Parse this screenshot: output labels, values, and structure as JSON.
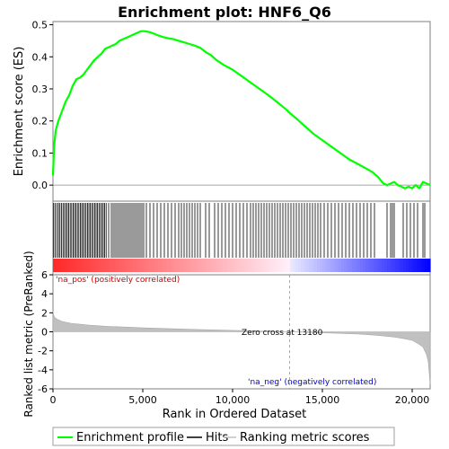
{
  "chart_data": {
    "type": "line",
    "title": "Enrichment plot: HNF6_Q6",
    "es_panel": {
      "ylabel": "Enrichment score (ES)",
      "ylim": [
        -0.05,
        0.51
      ],
      "yticks": [
        0.0,
        0.1,
        0.2,
        0.3,
        0.4,
        0.5
      ],
      "ytick_labels": [
        "0.0",
        "0.1",
        "0.2",
        "0.3",
        "0.4",
        "0.5"
      ],
      "series": [
        {
          "name": "Enrichment profile",
          "color": "#00ff00",
          "x": [
            0,
            60,
            150,
            300,
            500,
            700,
            900,
            1100,
            1300,
            1500,
            1700,
            1900,
            2100,
            2300,
            2500,
            2700,
            2900,
            3100,
            3300,
            3500,
            3700,
            3900,
            4100,
            4300,
            4500,
            4700,
            4900,
            5100,
            5300,
            5500,
            5800,
            6100,
            6400,
            6700,
            7000,
            7300,
            7600,
            7900,
            8200,
            8500,
            8800,
            9100,
            9500,
            10000,
            10500,
            11000,
            11500,
            12000,
            12500,
            13000,
            13180,
            13500,
            14000,
            14500,
            15000,
            15500,
            16000,
            16500,
            17000,
            17500,
            17800,
            18100,
            18400,
            18600,
            18800,
            19000,
            19200,
            19400,
            19600,
            19800,
            20000,
            20200,
            20400,
            20600,
            20800,
            21000
          ],
          "values": [
            0.03,
            0.12,
            0.17,
            0.2,
            0.23,
            0.26,
            0.28,
            0.31,
            0.33,
            0.335,
            0.345,
            0.36,
            0.375,
            0.39,
            0.4,
            0.41,
            0.425,
            0.43,
            0.435,
            0.44,
            0.45,
            0.455,
            0.46,
            0.465,
            0.47,
            0.475,
            0.48,
            0.48,
            0.478,
            0.475,
            0.468,
            0.462,
            0.458,
            0.455,
            0.45,
            0.445,
            0.44,
            0.435,
            0.428,
            0.415,
            0.405,
            0.39,
            0.375,
            0.36,
            0.34,
            0.32,
            0.3,
            0.28,
            0.258,
            0.235,
            0.225,
            0.21,
            0.185,
            0.16,
            0.14,
            0.12,
            0.1,
            0.08,
            0.065,
            0.05,
            0.04,
            0.025,
            0.005,
            0.0,
            0.005,
            0.01,
            0.0,
            -0.005,
            -0.01,
            -0.005,
            -0.01,
            0.0,
            -0.01,
            0.01,
            0.005,
            0.0
          ]
        }
      ]
    },
    "hits_panel": {
      "name": "Hits",
      "hit_positions": [
        40,
        130,
        220,
        310,
        390,
        470,
        560,
        640,
        720,
        800,
        880,
        960,
        1040,
        1120,
        1200,
        1280,
        1360,
        1440,
        1520,
        1600,
        1680,
        1760,
        1840,
        1920,
        2000,
        2080,
        2160,
        2240,
        2320,
        2400,
        2480,
        2560,
        2640,
        2720,
        2800,
        2880,
        2960,
        3100,
        3250,
        3350,
        3450,
        3550,
        3650,
        3750,
        3850,
        3950,
        4050,
        4150,
        4250,
        4350,
        4450,
        4550,
        4650,
        4750,
        4850,
        4950,
        5050,
        5200,
        5400,
        5600,
        5800,
        6000,
        6200,
        6400,
        6600,
        6800,
        7000,
        7150,
        7300,
        7450,
        7600,
        7750,
        7900,
        8050,
        8200,
        8500,
        8700,
        9000,
        9200,
        9400,
        9600,
        9800,
        10000,
        10200,
        10400,
        10600,
        10800,
        11000,
        11150,
        11300,
        11450,
        11600,
        11750,
        11900,
        12050,
        12200,
        12350,
        12500,
        12650,
        12800,
        12950,
        13100,
        13250,
        13400,
        13550,
        13700,
        13850,
        14000,
        14150,
        14300,
        14450,
        14600,
        14750,
        14900,
        15100,
        15300,
        15500,
        15700,
        15900,
        16100,
        16300,
        16500,
        16700,
        16900,
        17100,
        17300,
        17500,
        17700,
        17900,
        18600,
        18800,
        18900,
        19000,
        19500,
        19700,
        19900,
        20100,
        20300,
        20600,
        20700
      ]
    },
    "metric_panel": {
      "ylabel": "Ranked list metric (PreRanked)",
      "ylim": [
        -6,
        6
      ],
      "yticks": [
        -6,
        -4,
        -2,
        0,
        2,
        4,
        6
      ],
      "ytick_labels": [
        "-6",
        "-4",
        "-2",
        "0",
        "2",
        "4",
        "6"
      ],
      "series": [
        {
          "name": "Ranking metric scores",
          "color": "#c0c0c0",
          "x": [
            0,
            30,
            100,
            250,
            500,
            1000,
            2000,
            3000,
            4000,
            5000,
            6000,
            7000,
            8000,
            9000,
            10000,
            11000,
            12000,
            13000,
            13180,
            14000,
            15000,
            16000,
            17000,
            18000,
            18500,
            19000,
            19500,
            20000,
            20300,
            20600,
            20800,
            20900,
            21000
          ],
          "values": [
            2.2,
            1.8,
            1.5,
            1.3,
            1.1,
            0.9,
            0.7,
            0.58,
            0.5,
            0.42,
            0.36,
            0.3,
            0.25,
            0.2,
            0.15,
            0.1,
            0.06,
            0.01,
            0.0,
            -0.05,
            -0.1,
            -0.16,
            -0.24,
            -0.36,
            -0.45,
            -0.55,
            -0.7,
            -0.9,
            -1.2,
            -1.6,
            -2.4,
            -3.2,
            -5.5
          ]
        }
      ],
      "annotations": [
        {
          "text": "'na_pos' (positively correlated)",
          "color": "#cc0000"
        },
        {
          "text": "Zero cross at 13180",
          "color": "#000000"
        },
        {
          "text": "'na_neg' (negatively correlated)",
          "color": "#0000cc"
        }
      ],
      "zero_cross": 13180
    },
    "xlabel": "Rank in Ordered Dataset",
    "xlim": [
      0,
      21000
    ],
    "xticks": [
      0,
      5000,
      10000,
      15000,
      20000
    ],
    "xtick_labels": [
      "0",
      "5,000",
      "10,000",
      "15,000",
      "20,000"
    ],
    "legend": {
      "placement": "bottom",
      "items": [
        {
          "label": "Enrichment profile",
          "color": "#00ff00"
        },
        {
          "label": "Hits",
          "color": "#000000"
        },
        {
          "label": "Ranking metric scores",
          "color": "#c0c0c0"
        }
      ]
    },
    "grid": false
  }
}
